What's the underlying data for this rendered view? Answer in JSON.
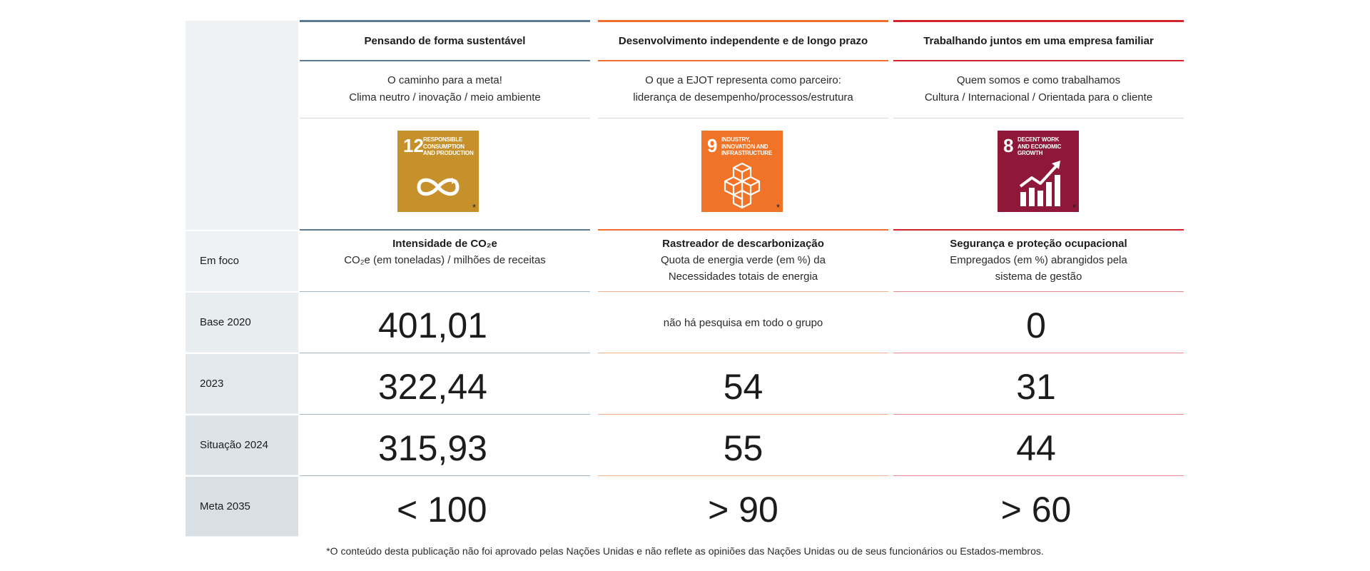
{
  "row_labels": [
    "Em foco",
    "Base 2020",
    "2023",
    "Situação 2024",
    "Meta 2035"
  ],
  "columns": [
    {
      "heading": "Pensando de forma sustentável",
      "accent": "#5b7a93",
      "subtitle": [
        "O caminho para a meta!",
        "Clima neutro / inovação / meio ambiente"
      ],
      "sdg": {
        "number": "12",
        "title": "Responsible consumption and production",
        "color": "#c6902b",
        "icon": "infinity-icon",
        "star": "*"
      },
      "focus_title": "Intensidade de CO₂e",
      "focus_lines": [
        "CO₂e (em toneladas) / milhões de receitas"
      ],
      "values": [
        "401,01",
        "322,44",
        "315,93",
        "< 100"
      ]
    },
    {
      "heading": "Desenvolvimento independente e de longo prazo",
      "accent": "#ee6f2d",
      "subtitle": [
        "O que a EJOT representa como parceiro:",
        "liderança de desempenho/processos/estrutura"
      ],
      "sdg": {
        "number": "9",
        "title": "Industry, innovation and infrastructure",
        "color": "#f07327",
        "icon": "cubes-icon",
        "star": "*"
      },
      "focus_title": "Rastreador de descarbonização",
      "focus_lines": [
        "Quota de energia verde (em %) da",
        "Necessidades totais de energia"
      ],
      "values": [
        "não há pesquisa em todo o grupo",
        "54",
        "55",
        "> 90"
      ]
    },
    {
      "heading": "Trabalhando juntos em uma empresa familiar",
      "accent": "#d2262f",
      "subtitle": [
        "Quem somos e como trabalhamos",
        "Cultura / Internacional / Orientada para o cliente"
      ],
      "sdg": {
        "number": "8",
        "title": "Decent work and economic growth",
        "color": "#8f1838",
        "icon": "growth-chart-icon",
        "star": "*"
      },
      "focus_title": "Segurança e proteção ocupacional",
      "focus_lines": [
        "Empregados (em %) abrangidos pela",
        "sistema de gestão"
      ],
      "values": [
        "0",
        "31",
        "44",
        "> 60"
      ]
    }
  ],
  "footnote": "*O conteúdo desta publicação não foi aprovado pelas Nações Unidas e não reflete as opiniões das Nações Unidas ou de seus funcionários ou Estados-membros."
}
